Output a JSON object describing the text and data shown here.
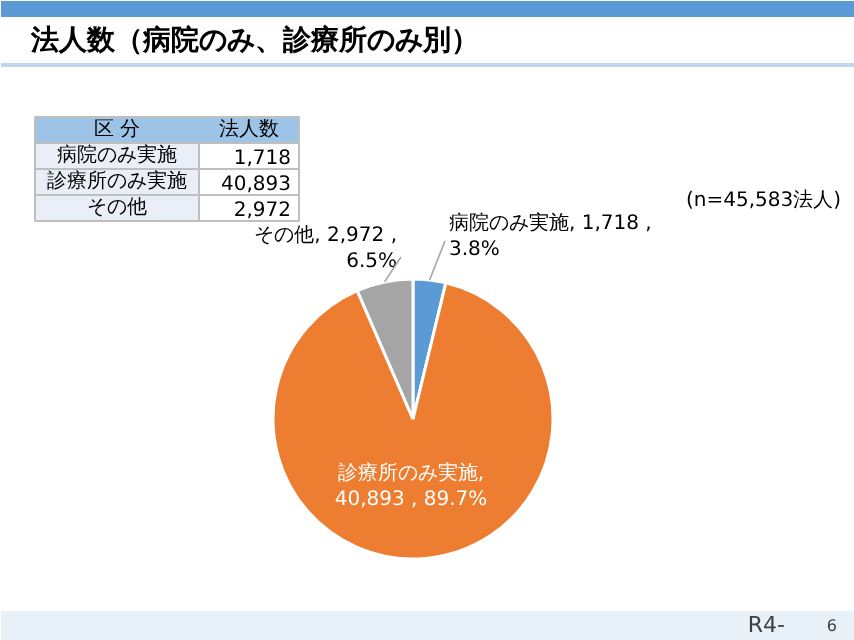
{
  "chart_data": [
    {
      "type": "pie",
      "title": "法人数（病院のみ、診療所のみ別）",
      "categories": [
        null,
        null,
        null
      ],
      "values": [
        1718,
        40893,
        2972
      ],
      "colors": [
        "#5b9bd5",
        "#ed7d31",
        "#a5a5a5"
      ],
      "value_labels": [
        "病院のみ実施, 1,718 ,\n3.8%",
        "診療所のみ実施,\n40,893 , 89.7%",
        "その他, 2,972 ,\n6.5%"
      ],
      "annotations": [
        "(n=45,583法人)",
        "R4-",
        "6"
      ]
    },
    {
      "type": "other",
      "categories": [
        "病院のみ実施",
        "診療所のみ実施",
        "その他"
      ],
      "values": [
        1718,
        40893,
        2972
      ],
      "value_labels": [
        "1,718",
        "40,893",
        "2,972"
      ],
      "annotations": [
        "区 分",
        "法人数"
      ]
    }
  ]
}
